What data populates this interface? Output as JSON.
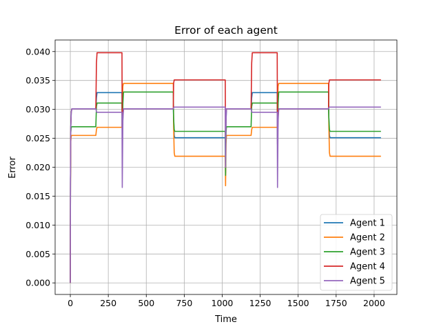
{
  "chart_data": {
    "type": "line",
    "title": "Error of each agent",
    "xlabel": "Time",
    "ylabel": "Error",
    "xlim": [
      -100,
      2150
    ],
    "ylim": [
      -0.002,
      0.042
    ],
    "xticks": [
      0,
      250,
      500,
      750,
      1000,
      1250,
      1500,
      1750,
      2000
    ],
    "xtick_labels": [
      "0",
      "250",
      "500",
      "750",
      "1000",
      "1250",
      "1500",
      "1750",
      "2000"
    ],
    "yticks": [
      0.0,
      0.005,
      0.01,
      0.015,
      0.02,
      0.025,
      0.03,
      0.035,
      0.04
    ],
    "ytick_labels": [
      "0.000",
      "0.005",
      "0.010",
      "0.015",
      "0.020",
      "0.025",
      "0.030",
      "0.035",
      "0.040"
    ],
    "grid": true,
    "legend_position": "lower-right",
    "series": [
      {
        "name": "Agent 1",
        "color": "#1f77b4",
        "x": [
          0,
          1,
          3,
          6,
          10,
          168,
          172,
          176,
          340,
          342,
          346,
          350,
          678,
          680,
          684,
          688,
          1020,
          1022,
          1025,
          1028,
          1190,
          1194,
          1198,
          1362,
          1364,
          1368,
          1372,
          1700,
          1702,
          1706,
          1710,
          2045
        ],
        "values": [
          0.0,
          0.018,
          0.027,
          0.0295,
          0.0301,
          0.0301,
          0.032,
          0.0329,
          0.0329,
          0.024,
          0.029,
          0.0301,
          0.0301,
          0.0285,
          0.0255,
          0.0251,
          0.0251,
          0.019,
          0.028,
          0.0301,
          0.0301,
          0.032,
          0.0329,
          0.0329,
          0.024,
          0.029,
          0.0301,
          0.0301,
          0.0285,
          0.0255,
          0.0251,
          0.0251
        ]
      },
      {
        "name": "Agent 2",
        "color": "#ff7f0e",
        "x": [
          0,
          1,
          3,
          6,
          10,
          168,
          172,
          176,
          340,
          342,
          346,
          350,
          678,
          680,
          684,
          688,
          1020,
          1022,
          1025,
          1028,
          1190,
          1194,
          1198,
          1362,
          1364,
          1368,
          1372,
          1700,
          1702,
          1706,
          1710,
          2045
        ],
        "values": [
          0.0,
          0.017,
          0.0245,
          0.0254,
          0.0255,
          0.0255,
          0.0265,
          0.0269,
          0.0269,
          0.03,
          0.034,
          0.0345,
          0.0345,
          0.027,
          0.0225,
          0.0219,
          0.0219,
          0.0168,
          0.024,
          0.0255,
          0.0255,
          0.0265,
          0.0269,
          0.0269,
          0.03,
          0.034,
          0.0345,
          0.0345,
          0.027,
          0.0225,
          0.0219,
          0.0219
        ]
      },
      {
        "name": "Agent 3",
        "color": "#2ca02c",
        "x": [
          0,
          1,
          3,
          6,
          10,
          168,
          172,
          176,
          340,
          342,
          346,
          350,
          678,
          680,
          684,
          688,
          1020,
          1022,
          1025,
          1028,
          1190,
          1194,
          1198,
          1362,
          1364,
          1368,
          1372,
          1700,
          1702,
          1706,
          1710,
          2045
        ],
        "values": [
          0.0,
          0.018,
          0.026,
          0.0269,
          0.027,
          0.027,
          0.0305,
          0.0311,
          0.0311,
          0.025,
          0.031,
          0.033,
          0.033,
          0.0285,
          0.0265,
          0.0262,
          0.0262,
          0.0186,
          0.026,
          0.027,
          0.027,
          0.0305,
          0.0311,
          0.0311,
          0.025,
          0.031,
          0.033,
          0.033,
          0.0285,
          0.0265,
          0.0262,
          0.0262
        ]
      },
      {
        "name": "Agent 4",
        "color": "#d62728",
        "x": [
          0,
          1,
          3,
          6,
          10,
          168,
          172,
          176,
          340,
          342,
          346,
          350,
          678,
          680,
          684,
          688,
          1020,
          1022,
          1025,
          1028,
          1190,
          1194,
          1198,
          1362,
          1364,
          1368,
          1372,
          1700,
          1702,
          1706,
          1710,
          2045
        ],
        "values": [
          0.0,
          0.018,
          0.027,
          0.0295,
          0.0301,
          0.0301,
          0.038,
          0.0398,
          0.0398,
          0.024,
          0.029,
          0.0301,
          0.0301,
          0.0345,
          0.0351,
          0.0351,
          0.0351,
          0.022,
          0.029,
          0.0301,
          0.0301,
          0.038,
          0.0398,
          0.0398,
          0.024,
          0.029,
          0.0301,
          0.0301,
          0.0345,
          0.0351,
          0.0351,
          0.0351
        ]
      },
      {
        "name": "Agent 5",
        "color": "#9467bd",
        "x": [
          0,
          1,
          3,
          6,
          10,
          168,
          172,
          176,
          340,
          342,
          346,
          350,
          678,
          680,
          684,
          688,
          1020,
          1022,
          1025,
          1028,
          1190,
          1194,
          1198,
          1362,
          1364,
          1368,
          1372,
          1700,
          1702,
          1706,
          1710,
          2045
        ],
        "values": [
          0.0,
          0.018,
          0.027,
          0.0295,
          0.0301,
          0.0301,
          0.0296,
          0.0295,
          0.0295,
          0.0165,
          0.028,
          0.0301,
          0.0301,
          0.0303,
          0.0304,
          0.0304,
          0.0304,
          0.02,
          0.028,
          0.0301,
          0.0301,
          0.0296,
          0.0295,
          0.0295,
          0.0165,
          0.028,
          0.0301,
          0.0301,
          0.0303,
          0.0304,
          0.0304,
          0.0304
        ]
      }
    ]
  }
}
